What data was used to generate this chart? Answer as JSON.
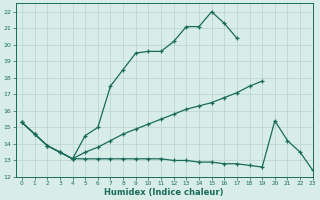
{
  "xlabel": "Humidex (Indice chaleur)",
  "bg_color": "#d8ede8",
  "grid_color": "#b8d4cc",
  "line_color": "#1a6b5a",
  "xlim": [
    -0.5,
    23
  ],
  "ylim": [
    12,
    22.5
  ],
  "xticks": [
    0,
    1,
    2,
    3,
    4,
    5,
    6,
    7,
    8,
    9,
    10,
    11,
    12,
    13,
    14,
    15,
    16,
    17,
    18,
    19,
    20,
    21,
    22,
    23
  ],
  "yticks": [
    12,
    13,
    14,
    15,
    16,
    17,
    18,
    19,
    20,
    21,
    22
  ],
  "line1_x": [
    0,
    1,
    2,
    3,
    4,
    5,
    6,
    7,
    8,
    9,
    10,
    11,
    12,
    13,
    14,
    15,
    16,
    17
  ],
  "line1_y": [
    15.3,
    14.6,
    13.9,
    13.5,
    13.1,
    14.5,
    15.0,
    17.5,
    18.5,
    19.5,
    19.6,
    19.6,
    20.2,
    21.1,
    21.1,
    22.0,
    21.3,
    20.4
  ],
  "line2_x": [
    0,
    1,
    2,
    3,
    4,
    5,
    6,
    7,
    8,
    9,
    10,
    11,
    12,
    13,
    14,
    15,
    16,
    17,
    18,
    19
  ],
  "line2_y": [
    15.3,
    14.6,
    13.9,
    13.5,
    13.1,
    13.5,
    13.8,
    14.2,
    14.6,
    14.9,
    15.2,
    15.5,
    15.8,
    16.1,
    16.3,
    16.5,
    16.8,
    17.1,
    17.5,
    17.8
  ],
  "line3_x": [
    0,
    1,
    2,
    3,
    4,
    5,
    6,
    7,
    8,
    9,
    10,
    11,
    12,
    13,
    14,
    15,
    16,
    17,
    18,
    19,
    20,
    21,
    22,
    23
  ],
  "line3_y": [
    15.3,
    14.6,
    13.9,
    13.5,
    13.1,
    13.1,
    13.1,
    13.1,
    13.1,
    13.1,
    13.1,
    13.1,
    13.0,
    13.0,
    12.9,
    12.9,
    12.8,
    12.8,
    12.7,
    12.6,
    15.4,
    14.2,
    13.5,
    12.4
  ]
}
